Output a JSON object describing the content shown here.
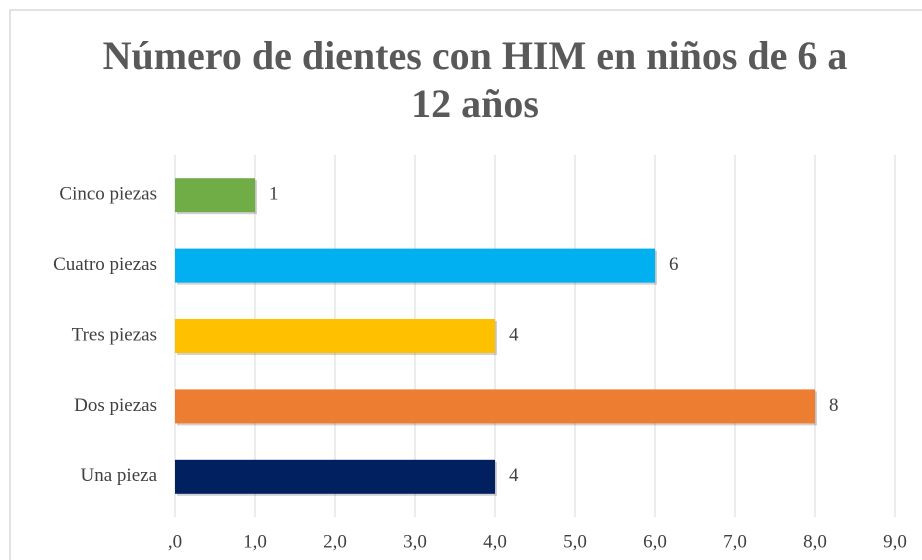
{
  "chart_data": {
    "type": "bar",
    "orientation": "horizontal",
    "title": "Número de dientes con HIM en niños de 6 a 12 años",
    "categories": [
      "Cinco piezas",
      "Cuatro piezas",
      "Tres piezas",
      "Dos piezas",
      "Una pieza"
    ],
    "values": [
      1,
      6,
      4,
      8,
      4
    ],
    "colors": [
      "#70ad47",
      "#00b0f0",
      "#ffc000",
      "#ed7d31",
      "#002060"
    ],
    "xlim": [
      0,
      9
    ],
    "xticks": [
      {
        "value": 0,
        "label": ",0"
      },
      {
        "value": 1,
        "label": "1,0"
      },
      {
        "value": 2,
        "label": "2,0"
      },
      {
        "value": 3,
        "label": "3,0"
      },
      {
        "value": 4,
        "label": "4,0"
      },
      {
        "value": 5,
        "label": "5,0"
      },
      {
        "value": 6,
        "label": "6,0"
      },
      {
        "value": 7,
        "label": "7,0"
      },
      {
        "value": 8,
        "label": "8,0"
      },
      {
        "value": 9,
        "label": "9,0"
      }
    ],
    "grid": true
  }
}
